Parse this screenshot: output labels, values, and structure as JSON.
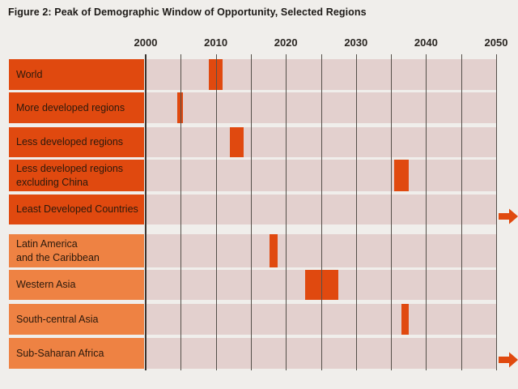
{
  "title": "Figure 2: Peak of Demographic Window of Opportunity, Selected Regions",
  "colors": {
    "bar_orange": "#e0490f",
    "label_box_dark_orange": "#e0490f",
    "label_box_light_orange": "#ee8243",
    "row_stripe_pink": "#e3d0ce",
    "page_background": "#f0eeeb",
    "gridline_gray": "#55504a",
    "text_dark": "#2b190c"
  },
  "chart_data": {
    "type": "bar",
    "subtype": "horizontal-timeline-gantt",
    "title": "Figure 2: Peak of Demographic Window of Opportunity, Selected Regions",
    "x_axis": {
      "range": [
        2000,
        2050
      ],
      "tick_labels": [
        2000,
        2010,
        2020,
        2030,
        2040,
        2050
      ],
      "gridline_interval_years": 5,
      "position": "top"
    },
    "grid": "on",
    "legend": "none",
    "beyond_range_marker": "right-arrow",
    "regions": [
      {
        "label": "World",
        "group": "aggregate",
        "peak_start": 2009,
        "peak_end": 2011,
        "beyond_2050": false
      },
      {
        "label": "More developed regions",
        "group": "aggregate",
        "peak_start": 2004.5,
        "peak_end": 2005.3,
        "beyond_2050": false
      },
      {
        "label": "Less developed regions",
        "group": "aggregate",
        "peak_start": 2012,
        "peak_end": 2014,
        "beyond_2050": false
      },
      {
        "label": "Less developed regions\nexcluding China",
        "group": "aggregate",
        "peak_start": 2035.5,
        "peak_end": 2037.5,
        "beyond_2050": false
      },
      {
        "label": "Least Developed Countries",
        "group": "aggregate",
        "peak_start": null,
        "peak_end": null,
        "beyond_2050": true
      },
      {
        "label": "Latin America\nand the Caribbean",
        "group": "region",
        "peak_start": 2017.7,
        "peak_end": 2018.8,
        "beyond_2050": false
      },
      {
        "label": "Western Asia",
        "group": "region",
        "peak_start": 2022.7,
        "peak_end": 2027.5,
        "beyond_2050": false
      },
      {
        "label": "South-central Asia",
        "group": "region",
        "peak_start": 2036.5,
        "peak_end": 2037.5,
        "beyond_2050": false
      },
      {
        "label": "Sub-Saharan Africa",
        "group": "region",
        "peak_start": null,
        "peak_end": null,
        "beyond_2050": true
      }
    ]
  }
}
